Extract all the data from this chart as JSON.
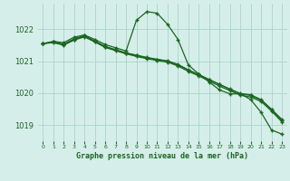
{
  "title": "Graphe pression niveau de la mer (hPa)",
  "bg_color": "#d6eeea",
  "grid_color": "#a8d4cc",
  "line_color": "#1a6620",
  "xlim": [
    -0.5,
    23.5
  ],
  "ylim": [
    1018.5,
    1022.8
  ],
  "yticks": [
    1019,
    1020,
    1021,
    1022
  ],
  "xticks": [
    0,
    1,
    2,
    3,
    4,
    5,
    6,
    7,
    8,
    9,
    10,
    11,
    12,
    13,
    14,
    15,
    16,
    17,
    18,
    19,
    20,
    21,
    22,
    23
  ],
  "line1_x": [
    0,
    1,
    2,
    3,
    4,
    5,
    6,
    7,
    8,
    9,
    10,
    11,
    12,
    13,
    14,
    15,
    16,
    17,
    18,
    19,
    20,
    21,
    22,
    23
  ],
  "line1_y": [
    1021.55,
    1021.62,
    1021.58,
    1021.75,
    1021.82,
    1021.68,
    1021.52,
    1021.42,
    1021.32,
    1022.28,
    1022.55,
    1022.5,
    1022.15,
    1021.68,
    1020.88,
    1020.6,
    1020.35,
    1020.1,
    1019.98,
    1019.98,
    1019.8,
    1019.4,
    1018.85,
    1018.72
  ],
  "line2_x": [
    0,
    1,
    2,
    3,
    4,
    5,
    6,
    7,
    8,
    9,
    10,
    11,
    12,
    13,
    14,
    15,
    16,
    17,
    18,
    19,
    20,
    21,
    22,
    23
  ],
  "line2_y": [
    1021.55,
    1021.6,
    1021.52,
    1021.68,
    1021.78,
    1021.62,
    1021.45,
    1021.35,
    1021.25,
    1021.18,
    1021.1,
    1021.05,
    1021.0,
    1020.88,
    1020.72,
    1020.58,
    1020.42,
    1020.28,
    1020.12,
    1019.98,
    1019.93,
    1019.78,
    1019.48,
    1019.15
  ],
  "line3_x": [
    0,
    1,
    2,
    3,
    4,
    5,
    6,
    7,
    8,
    9,
    10,
    11,
    12,
    13,
    14,
    15,
    16,
    17,
    18,
    19,
    20,
    21,
    22,
    23
  ],
  "line3_y": [
    1021.55,
    1021.58,
    1021.5,
    1021.66,
    1021.76,
    1021.6,
    1021.43,
    1021.33,
    1021.23,
    1021.15,
    1021.08,
    1021.02,
    1020.97,
    1020.85,
    1020.68,
    1020.54,
    1020.38,
    1020.22,
    1020.08,
    1019.94,
    1019.88,
    1019.74,
    1019.44,
    1019.1
  ],
  "line4_x": [
    0,
    1,
    2,
    3,
    4,
    5,
    6,
    7,
    8,
    9,
    10,
    11,
    12,
    13,
    14,
    15,
    16,
    17,
    18,
    19,
    20,
    21,
    22,
    23
  ],
  "line4_y": [
    1021.55,
    1021.6,
    1021.53,
    1021.7,
    1021.8,
    1021.63,
    1021.46,
    1021.36,
    1021.26,
    1021.19,
    1021.12,
    1021.06,
    1021.01,
    1020.9,
    1020.73,
    1020.58,
    1020.43,
    1020.27,
    1020.13,
    1019.99,
    1019.95,
    1019.8,
    1019.5,
    1019.18
  ]
}
